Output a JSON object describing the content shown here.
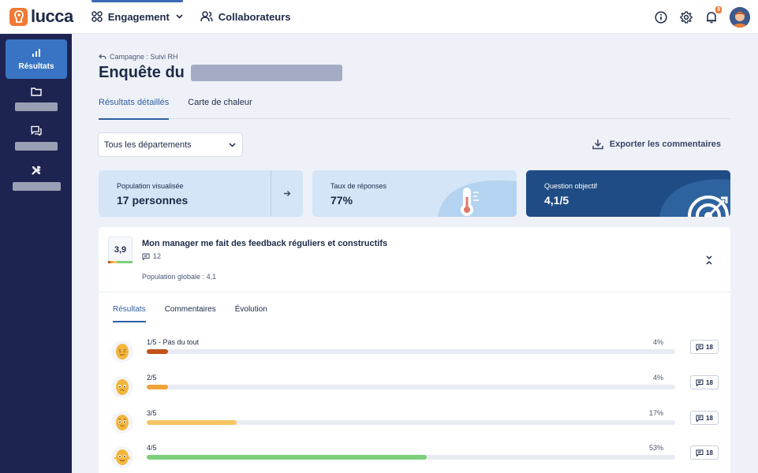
{
  "topbar": {
    "logo_text": "lucca",
    "nav": [
      {
        "label": "Engagement",
        "icon": "grid-icon"
      },
      {
        "label": "Collaborateurs",
        "icon": "users-icon"
      }
    ],
    "notification_count": "8"
  },
  "sidebar": {
    "items": [
      {
        "label": "Résultats",
        "icon": "bar-chart-icon",
        "active": true
      },
      {
        "label": "",
        "icon": "folder-icon"
      },
      {
        "label": "",
        "icon": "chat-icon"
      },
      {
        "label": "",
        "icon": "tools-icon"
      }
    ]
  },
  "header": {
    "breadcrumb": "Campagne : Suivi RH",
    "title": "Enquête du"
  },
  "tabs": [
    {
      "label": "Résultats détaillés",
      "active": true
    },
    {
      "label": "Carte de chaleur",
      "active": false
    }
  ],
  "filter": {
    "selected": "Tous les départements"
  },
  "export_label": "Exporter les commentaires",
  "kpis": [
    {
      "label": "Population visualisée",
      "value": "17 personnes"
    },
    {
      "label": "Taux de réponses",
      "value": "77%"
    },
    {
      "label": "Question objectif",
      "value": "4,1/5"
    }
  ],
  "question": {
    "score": "3,9",
    "title": "Mon manager me fait des feedback réguliers et constructifs",
    "comments": "12",
    "population_label": "Population globale : 4,1"
  },
  "sub_tabs": [
    {
      "label": "Résultats",
      "active": true
    },
    {
      "label": "Commentaires",
      "active": false
    },
    {
      "label": "Évolution",
      "active": false
    }
  ],
  "rows": [
    {
      "label": "1/5 - Pas du tout",
      "pct": "4%",
      "value": 4,
      "color": "#c0521a",
      "comments": "18"
    },
    {
      "label": "2/5",
      "pct": "4%",
      "value": 4,
      "color": "#f0a33a",
      "comments": "18"
    },
    {
      "label": "3/5",
      "pct": "17%",
      "value": 17,
      "color": "#f6c463",
      "comments": "18"
    },
    {
      "label": "4/5",
      "pct": "53%",
      "value": 53,
      "color": "#7dcf7a",
      "comments": "18"
    }
  ]
}
